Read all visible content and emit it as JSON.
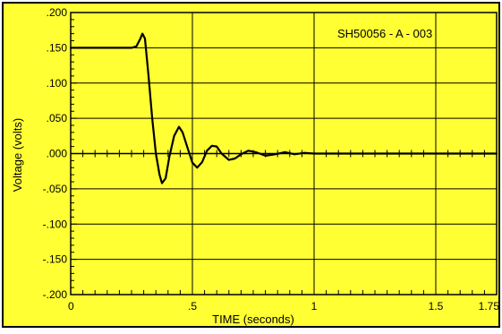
{
  "chart_data": {
    "type": "line",
    "annotation": "SH50056 - A - 003",
    "xlabel": "TIME  (seconds)",
    "ylabel": "Voltage (volts)",
    "xlim": [
      0,
      1.75
    ],
    "ylim": [
      -0.2,
      0.2
    ],
    "x_ticks": [
      {
        "value": 0,
        "label": "0"
      },
      {
        "value": 0.5,
        "label": ".5"
      },
      {
        "value": 1,
        "label": "1"
      },
      {
        "value": 1.5,
        "label": "1.5"
      },
      {
        "value": 1.75,
        "label": "1.75"
      }
    ],
    "y_ticks": [
      {
        "value": 0.2,
        "label": ".200"
      },
      {
        "value": 0.15,
        "label": ".150"
      },
      {
        "value": 0.1,
        "label": ".100"
      },
      {
        "value": 0.05,
        "label": ".050"
      },
      {
        "value": 0,
        "label": ".000"
      },
      {
        "value": -0.05,
        "label": "-.050"
      },
      {
        "value": -0.1,
        "label": "-.100"
      },
      {
        "value": -0.15,
        "label": "-.150"
      },
      {
        "value": -0.2,
        "label": "-.200"
      }
    ],
    "x_grid": [
      0.5,
      1,
      1.5
    ],
    "y_grid": [
      0.15,
      0.1,
      0.05,
      0,
      -0.05,
      -0.1,
      -0.15
    ],
    "grid": true,
    "background_color": "#ffff33",
    "border_color": "#000000",
    "series": [
      {
        "color": "#000000",
        "points": [
          [
            0,
            0.15
          ],
          [
            0.25,
            0.15
          ],
          [
            0.27,
            0.152
          ],
          [
            0.285,
            0.162
          ],
          [
            0.295,
            0.17
          ],
          [
            0.305,
            0.163
          ],
          [
            0.32,
            0.11
          ],
          [
            0.335,
            0.05
          ],
          [
            0.35,
            0.0
          ],
          [
            0.365,
            -0.03
          ],
          [
            0.375,
            -0.042
          ],
          [
            0.39,
            -0.035
          ],
          [
            0.405,
            -0.005
          ],
          [
            0.425,
            0.025
          ],
          [
            0.445,
            0.038
          ],
          [
            0.46,
            0.03
          ],
          [
            0.48,
            0.008
          ],
          [
            0.5,
            -0.013
          ],
          [
            0.52,
            -0.02
          ],
          [
            0.54,
            -0.012
          ],
          [
            0.56,
            0.004
          ],
          [
            0.58,
            0.011
          ],
          [
            0.6,
            0.01
          ],
          [
            0.62,
            0.0
          ],
          [
            0.65,
            -0.009
          ],
          [
            0.675,
            -0.007
          ],
          [
            0.7,
            -0.001
          ],
          [
            0.73,
            0.004
          ],
          [
            0.76,
            0.002
          ],
          [
            0.8,
            -0.003
          ],
          [
            0.84,
            -0.001
          ],
          [
            0.88,
            0.002
          ],
          [
            0.92,
            -0.001
          ],
          [
            0.96,
            0.001
          ],
          [
            1.0,
            0.0
          ],
          [
            1.75,
            0.0
          ]
        ]
      }
    ]
  }
}
